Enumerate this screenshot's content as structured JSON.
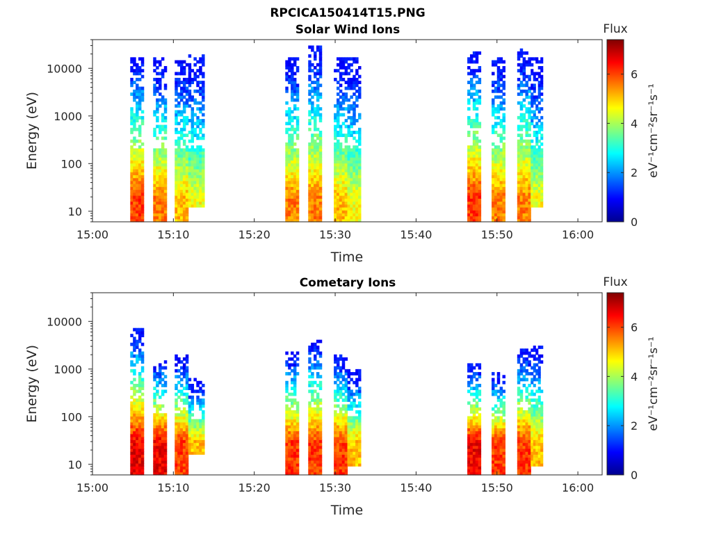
{
  "figure_title": "RPCICA150414T15.PNG",
  "colormap": "jet",
  "colors": {
    "axes": "#262626",
    "background": "#ffffff"
  },
  "chart_data": [
    {
      "type": "heatmap",
      "title": "Solar Wind Ions",
      "xlabel": "Time",
      "ylabel": "Energy (eV)",
      "xlim": [
        "15:00",
        "16:03"
      ],
      "xticks": [
        "15:00",
        "15:10",
        "15:20",
        "15:30",
        "15:40",
        "15:50",
        "16:00"
      ],
      "yscale": "log",
      "ylim": [
        6,
        40000
      ],
      "yticks": [
        "10",
        "100",
        "1000",
        "10000"
      ],
      "grid": false,
      "colorbar": {
        "title": "Flux",
        "label": "eV⁻¹cm⁻²sr⁻¹s⁻¹",
        "range": [
          0,
          7.4
        ],
        "ticks": [
          "0",
          "2",
          "4",
          "6"
        ]
      },
      "data_bursts": [
        {
          "start": "15:04:40",
          "end": "15:06:20",
          "peak_flux": 6.5,
          "emin": 6,
          "emax": 16000
        },
        {
          "start": "15:07:30",
          "end": "15:09:10",
          "peak_flux": 6.0,
          "emin": 6,
          "emax": 15000
        },
        {
          "start": "15:10:10",
          "end": "15:11:50",
          "peak_flux": 5.5,
          "emin": 6,
          "emax": 14000
        },
        {
          "start": "15:11:50",
          "end": "15:13:50",
          "peak_flux": 5.0,
          "emin": 14,
          "emax": 18000
        },
        {
          "start": "15:23:50",
          "end": "15:25:30",
          "peak_flux": 6.0,
          "emin": 6,
          "emax": 15000
        },
        {
          "start": "15:26:40",
          "end": "15:28:20",
          "peak_flux": 6.0,
          "emin": 6,
          "emax": 30000
        },
        {
          "start": "15:29:50",
          "end": "15:31:30",
          "peak_flux": 5.5,
          "emin": 6,
          "emax": 15000
        },
        {
          "start": "15:31:30",
          "end": "15:33:10",
          "peak_flux": 5.0,
          "emin": 6,
          "emax": 15000
        },
        {
          "start": "15:46:20",
          "end": "15:48:00",
          "peak_flux": 6.5,
          "emin": 6,
          "emax": 22000
        },
        {
          "start": "15:49:20",
          "end": "15:51:00",
          "peak_flux": 6.0,
          "emin": 6,
          "emax": 15000
        },
        {
          "start": "15:52:30",
          "end": "15:54:10",
          "peak_flux": 6.0,
          "emin": 6,
          "emax": 25000
        },
        {
          "start": "15:54:10",
          "end": "15:55:40",
          "peak_flux": 5.0,
          "emin": 14,
          "emax": 15000
        }
      ]
    },
    {
      "type": "heatmap",
      "title": "Cometary Ions",
      "xlabel": "Time",
      "ylabel": "Energy (eV)",
      "xlim": [
        "15:00",
        "16:03"
      ],
      "xticks": [
        "15:00",
        "15:10",
        "15:20",
        "15:30",
        "15:40",
        "15:50",
        "16:00"
      ],
      "yscale": "log",
      "ylim": [
        6,
        40000
      ],
      "yticks": [
        "10",
        "100",
        "1000",
        "10000"
      ],
      "grid": false,
      "colorbar": {
        "title": "Flux",
        "label": "eV⁻¹cm⁻²sr⁻¹s⁻¹",
        "range": [
          0,
          7.4
        ],
        "ticks": [
          "0",
          "2",
          "4",
          "6"
        ]
      },
      "data_bursts": [
        {
          "start": "15:04:40",
          "end": "15:06:20",
          "peak_flux": 7.0,
          "emin": 6,
          "emax": 7000
        },
        {
          "start": "15:07:30",
          "end": "15:09:10",
          "peak_flux": 7.0,
          "emin": 6,
          "emax": 1500
        },
        {
          "start": "15:10:10",
          "end": "15:11:50",
          "peak_flux": 6.5,
          "emin": 6,
          "emax": 1800
        },
        {
          "start": "15:11:50",
          "end": "15:13:50",
          "peak_flux": 5.5,
          "emin": 18,
          "emax": 600
        },
        {
          "start": "15:23:50",
          "end": "15:25:30",
          "peak_flux": 6.5,
          "emin": 6,
          "emax": 2200
        },
        {
          "start": "15:26:40",
          "end": "15:28:20",
          "peak_flux": 6.5,
          "emin": 6,
          "emax": 3800
        },
        {
          "start": "15:29:50",
          "end": "15:31:30",
          "peak_flux": 6.5,
          "emin": 6,
          "emax": 1800
        },
        {
          "start": "15:31:30",
          "end": "15:33:10",
          "peak_flux": 5.5,
          "emin": 10,
          "emax": 900
        },
        {
          "start": "15:46:20",
          "end": "15:48:00",
          "peak_flux": 7.0,
          "emin": 6,
          "emax": 1200
        },
        {
          "start": "15:49:20",
          "end": "15:51:00",
          "peak_flux": 6.5,
          "emin": 6,
          "emax": 800
        },
        {
          "start": "15:52:30",
          "end": "15:54:10",
          "peak_flux": 6.5,
          "emin": 6,
          "emax": 2500
        },
        {
          "start": "15:54:10",
          "end": "15:55:40",
          "peak_flux": 5.5,
          "emin": 10,
          "emax": 2900
        }
      ]
    }
  ]
}
